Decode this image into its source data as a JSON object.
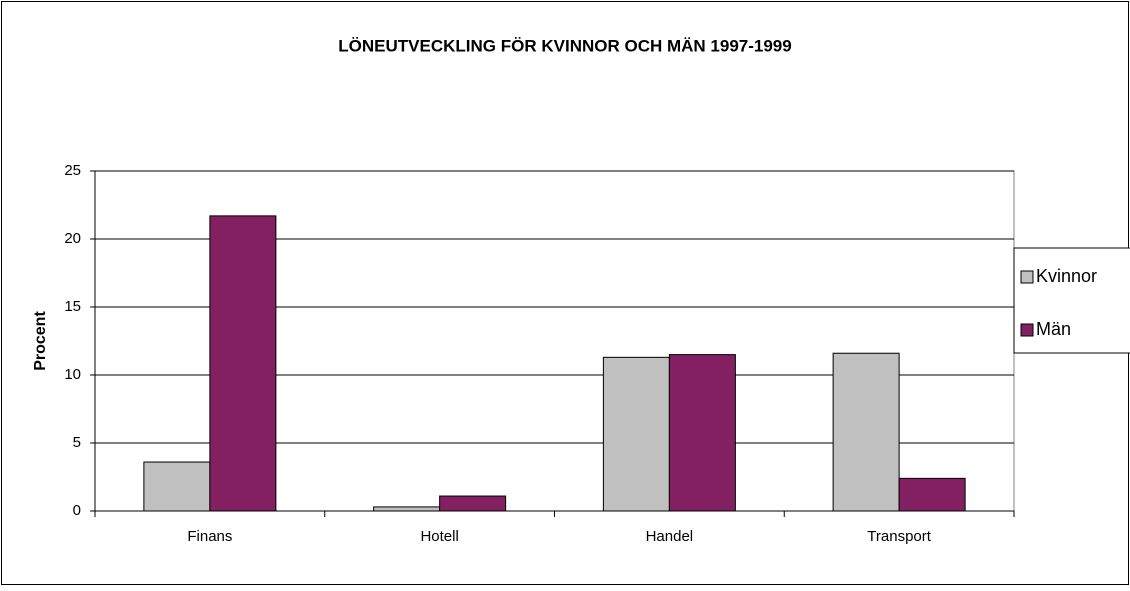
{
  "chart_data": {
    "type": "bar",
    "title": "LÖNEUTVECKLING FÖR KVINNOR OCH MÄN 1997-1999",
    "y_label": "Procent",
    "categories": [
      "Finans",
      "Hotell",
      "Handel",
      "Transport"
    ],
    "series": [
      {
        "name": "Kvinnor",
        "color": "#c0c0c0",
        "values": [
          3.6,
          0.3,
          11.3,
          11.6
        ]
      },
      {
        "name": "Män",
        "color": "#832062",
        "values": [
          21.7,
          1.1,
          11.5,
          2.4
        ]
      }
    ],
    "ylim": [
      0,
      25
    ],
    "yticks": [
      0,
      5,
      10,
      15,
      20,
      25
    ],
    "grid": true,
    "legend": "right"
  }
}
